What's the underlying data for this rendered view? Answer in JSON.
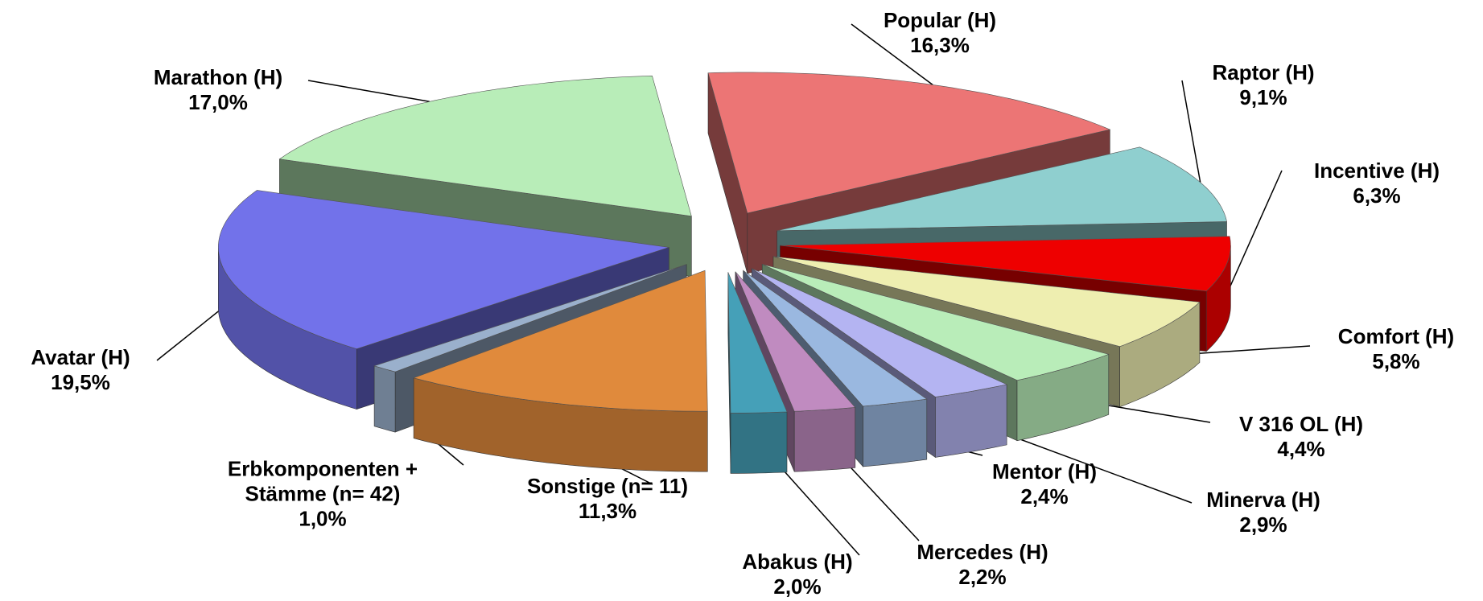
{
  "chart_data": {
    "type": "pie",
    "categories": [
      "Popular (H)",
      "Raptor (H)",
      "Incentive (H)",
      "Comfort (H)",
      "V 316 OL (H)",
      "Minerva (H)",
      "Mentor (H)",
      "Mercedes (H)",
      "Abakus (H)",
      "Sonstige (n= 11)",
      "Erbkomponenten + Stämme (n= 42)",
      "Avatar (H)",
      "Marathon (H)"
    ],
    "values": [
      16.3,
      9.1,
      6.3,
      5.8,
      4.4,
      2.9,
      2.4,
      2.2,
      2.0,
      11.3,
      1.0,
      19.5,
      17.0
    ],
    "value_labels": [
      "16,3%",
      "9,1%",
      "6,3%",
      "5,8%",
      "4,4%",
      "2,9%",
      "2,4%",
      "2,2%",
      "2,0%",
      "11,3%",
      "1,0%",
      "19,5%",
      "17,0%"
    ],
    "colors": [
      "#ec7575",
      "#8fcfcf",
      "#ee0000",
      "#eeeeb0",
      "#b9edb9",
      "#b4b4f2",
      "#9ab8e0",
      "#c08bc0",
      "#45a0b8",
      "#e08a3c",
      "#9ab0cc",
      "#7272ea",
      "#b8edb8"
    ]
  }
}
